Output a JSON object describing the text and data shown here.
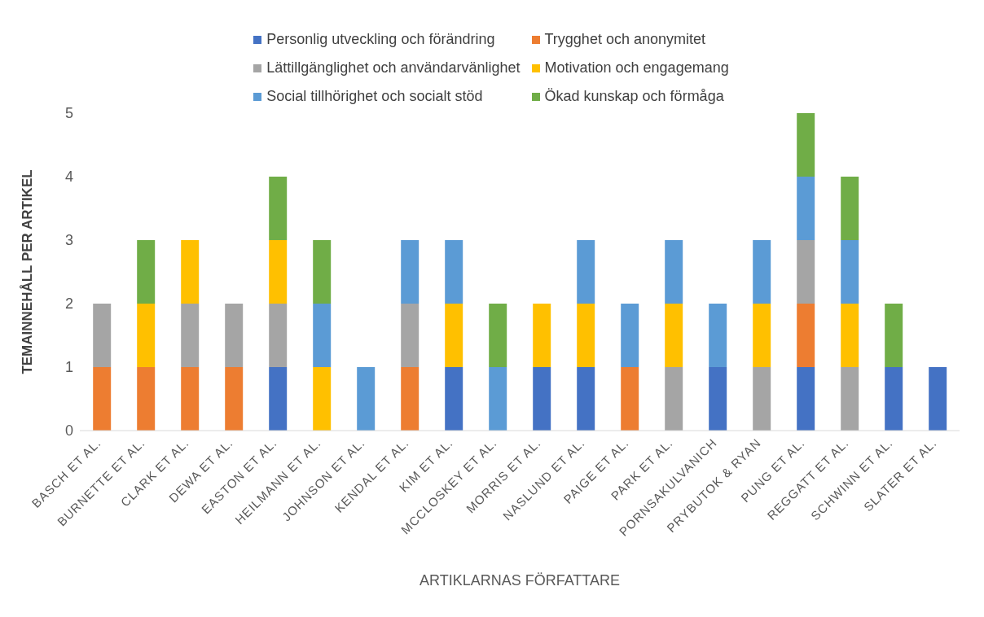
{
  "chart_data": {
    "type": "bar",
    "stacked": true,
    "xlabel": "ARTIKLARNAS FÖRFATTARE",
    "ylabel": "TEMAINNEHÅLL PER ARTIKEL",
    "categories": [
      "BASCH ET AL.",
      "BURNETTE ET AL.",
      "CLARK ET AL.",
      "DEWA ET AL.",
      "EASTON ET AL.",
      "HEILMANN ET AL.",
      "JOHNSON ET AL.",
      "KENDAL ET AL.",
      "KIM ET AL.",
      "MCCLOSKEY ET AL.",
      "MORRIS ET AL.",
      "NASLUND ET AL.",
      "PAIGE ET AL.",
      "PARK ET AL.",
      "PORNSAKULVANICH",
      "PRYBUTOK & RYAN",
      "PUNG ET AL.",
      "REGGATT ET AL.",
      "SCHWINN ET AL.",
      "SLATER ET AL."
    ],
    "series": [
      {
        "name": "Personlig utveckling och förändring",
        "color": "#4472c4",
        "values": [
          0,
          0,
          0,
          0,
          1,
          0,
          0,
          0,
          1,
          0,
          1,
          1,
          0,
          0,
          1,
          0,
          1,
          0,
          1,
          1
        ]
      },
      {
        "name": "Trygghet och anonymitet",
        "color": "#ed7d31",
        "values": [
          1,
          1,
          1,
          1,
          0,
          0,
          0,
          1,
          0,
          0,
          0,
          0,
          1,
          0,
          0,
          0,
          1,
          0,
          0,
          0
        ]
      },
      {
        "name": "Lättillgänglighet och användarvänlighet",
        "color": "#a5a5a5",
        "values": [
          1,
          0,
          1,
          1,
          1,
          0,
          0,
          1,
          0,
          0,
          0,
          0,
          0,
          1,
          0,
          1,
          1,
          1,
          0,
          0
        ]
      },
      {
        "name": "Motivation och engagemang",
        "color": "#ffc000",
        "values": [
          0,
          1,
          1,
          0,
          1,
          1,
          0,
          0,
          1,
          0,
          1,
          1,
          0,
          1,
          0,
          1,
          0,
          1,
          0,
          0
        ]
      },
      {
        "name": "Social tillhörighet och socialt stöd",
        "color": "#5b9bd5",
        "values": [
          0,
          0,
          0,
          0,
          0,
          1,
          1,
          1,
          1,
          1,
          0,
          1,
          1,
          1,
          1,
          1,
          1,
          1,
          0,
          0
        ]
      },
      {
        "name": "Ökad kunskap och förmåga",
        "color": "#70ad47",
        "values": [
          0,
          1,
          0,
          0,
          1,
          1,
          0,
          0,
          0,
          1,
          0,
          0,
          0,
          0,
          0,
          0,
          1,
          1,
          1,
          0
        ]
      }
    ],
    "ylim": [
      0,
      5
    ],
    "yticks": [
      0,
      1,
      2,
      3,
      4,
      5
    ],
    "grid": false,
    "legend": "top"
  }
}
